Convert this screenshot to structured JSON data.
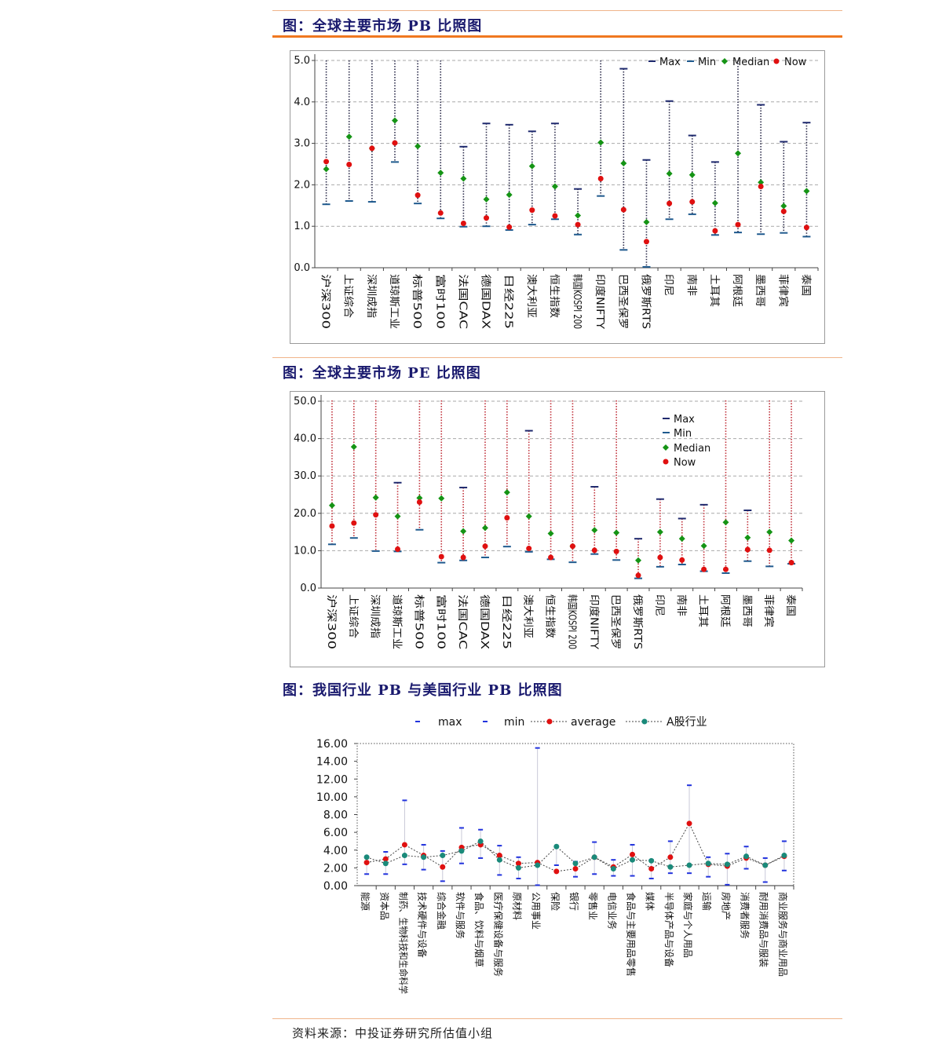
{
  "titles": {
    "pb": "图：全球主要市场 PB 比照图",
    "pe": "图：全球主要市场 PE 比照图",
    "industry": "图：我国行业 PB 与美国行业 PB 比照图"
  },
  "source": "资料来源：中投证券研究所估值小组",
  "colors": {
    "accent": "#f07820",
    "title": "#1a1a6e",
    "max": "#1f2a6e",
    "median": "#159415",
    "now": "#e01010",
    "teal": "#1a8a7a"
  },
  "chart_data": [
    {
      "type": "scatter",
      "id": "global-pb",
      "categories": [
        "沪深300",
        "上证综合",
        "深圳成指",
        "道琼斯工业",
        "标普500",
        "富时100",
        "法国CAC",
        "德国DAX",
        "日经225",
        "澳大利亚",
        "恒生指数",
        "韩国KOSPI 200",
        "印度NIFTY",
        "巴西圣保罗",
        "俄罗斯RTS",
        "印尼",
        "南非",
        "土耳其",
        "阿根廷",
        "墨西哥",
        "菲律宾",
        "泰国"
      ],
      "ylim": [
        0,
        5
      ],
      "yticks": [
        "0.0",
        "1.0",
        "2.0",
        "3.0",
        "4.0",
        "5.0"
      ],
      "legend_placement": "top-right",
      "legend": [
        "Max",
        "Min",
        "Median",
        "Now"
      ],
      "series": [
        {
          "name": "Max",
          "values": [
            5.3,
            5.3,
            5.3,
            5.3,
            5.3,
            5.3,
            2.92,
            3.48,
            3.45,
            3.29,
            3.48,
            1.9,
            5.3,
            4.8,
            2.6,
            4.02,
            3.19,
            2.55,
            5.3,
            3.93,
            3.04,
            3.5
          ]
        },
        {
          "name": "Min",
          "values": [
            1.53,
            1.61,
            1.59,
            2.55,
            1.55,
            1.19,
            0.99,
            1.0,
            0.91,
            1.04,
            1.17,
            0.8,
            1.73,
            0.43,
            0.02,
            1.17,
            1.29,
            0.79,
            0.85,
            0.81,
            0.84,
            0.75
          ]
        },
        {
          "name": "Median",
          "values": [
            2.38,
            3.16,
            2.88,
            3.55,
            2.93,
            2.29,
            2.15,
            1.65,
            1.76,
            2.45,
            1.96,
            1.26,
            3.02,
            2.52,
            1.1,
            2.27,
            2.24,
            1.56,
            2.76,
            2.06,
            1.49,
            1.85
          ]
        },
        {
          "name": "Now",
          "values": [
            2.56,
            2.49,
            2.88,
            3.01,
            1.75,
            1.32,
            1.07,
            1.2,
            0.98,
            1.39,
            1.25,
            1.04,
            2.15,
            1.4,
            0.63,
            1.55,
            1.59,
            0.89,
            1.04,
            1.96,
            1.36,
            0.97
          ]
        }
      ]
    },
    {
      "type": "scatter",
      "id": "global-pe",
      "categories": [
        "沪深300",
        "上证综合",
        "深圳成指",
        "道琼斯工业",
        "标普500",
        "富时100",
        "法国CAC",
        "德国DAX",
        "日经225",
        "澳大利亚",
        "恒生指数",
        "韩国KOSPI 200",
        "印度NIFTY",
        "巴西圣保罗",
        "俄罗斯RTS",
        "印尼",
        "南非",
        "土耳其",
        "阿根廷",
        "墨西哥",
        "菲律宾",
        "泰国"
      ],
      "ylim": [
        0,
        50
      ],
      "yticks": [
        "0.0",
        "10.0",
        "20.0",
        "30.0",
        "40.0",
        "50.0"
      ],
      "legend_placement": "right",
      "legend": [
        "Max",
        "Min",
        "Median",
        "Now"
      ],
      "series": [
        {
          "name": "Max",
          "values": [
            51,
            51,
            51,
            28.2,
            51,
            51,
            26.9,
            51,
            51,
            42.1,
            51,
            51,
            27.1,
            51,
            13.2,
            23.8,
            18.6,
            22.3,
            51,
            20.8,
            51,
            51
          ]
        },
        {
          "name": "Min",
          "values": [
            11.7,
            13.4,
            9.9,
            9.8,
            15.6,
            6.8,
            7.4,
            8.2,
            11.1,
            9.7,
            7.7,
            6.9,
            9.1,
            7.5,
            2.6,
            5.7,
            6.3,
            4.5,
            4.0,
            7.2,
            5.8,
            6.5
          ]
        },
        {
          "name": "Median",
          "values": [
            22.1,
            37.8,
            24.2,
            19.2,
            24.1,
            24.0,
            15.2,
            16.1,
            25.6,
            19.2,
            14.6,
            11.2,
            15.5,
            14.8,
            7.4,
            15.0,
            13.2,
            11.3,
            17.6,
            13.5,
            15.0,
            12.7
          ]
        },
        {
          "name": "Now",
          "values": [
            16.6,
            17.4,
            19.6,
            10.4,
            23.0,
            8.4,
            8.2,
            11.2,
            18.8,
            10.6,
            8.2,
            11.2,
            10.1,
            9.8,
            3.4,
            8.2,
            7.5,
            5.0,
            5.0,
            10.3,
            10.1,
            6.8
          ]
        }
      ]
    },
    {
      "type": "line",
      "id": "industry-pb",
      "categories": [
        "能源",
        "资本品",
        "制药、生物科技和生命科学",
        "技术硬件与设备",
        "综合金融",
        "软件与服务",
        "食品、饮料与烟草",
        "医疗保健设备与服务",
        "原材料",
        "公用事业",
        "保险",
        "银行",
        "零售业",
        "电信业务",
        "食品与主要用品零售",
        "媒体",
        "半导体产品与设备",
        "家庭与个人用品",
        "运输",
        "房地产",
        "消费者服务",
        "耐用消费品与服装",
        "商业服务与商业用品"
      ],
      "ylim": [
        0,
        16
      ],
      "yticks": [
        "0.00",
        "2.00",
        "4.00",
        "6.00",
        "8.00",
        "10.00",
        "12.00",
        "14.00",
        "16.00"
      ],
      "legend_placement": "top",
      "legend": [
        "max",
        "min",
        "average",
        "A股行业"
      ],
      "series": [
        {
          "name": "max",
          "values": [
            3.3,
            3.8,
            9.6,
            4.6,
            3.9,
            6.5,
            6.3,
            4.5,
            3.2,
            15.5,
            4.4,
            2.7,
            4.9,
            2.9,
            4.6,
            2.9,
            5.0,
            11.3,
            3.2,
            3.6,
            4.4,
            3.1,
            5.0
          ]
        },
        {
          "name": "min",
          "values": [
            1.3,
            1.3,
            2.4,
            1.8,
            0.5,
            2.5,
            3.1,
            1.2,
            0.8,
            0.05,
            2.3,
            1.0,
            1.3,
            1.1,
            1.1,
            0.8,
            1.4,
            1.4,
            1.0,
            0.1,
            1.9,
            0.4,
            1.7
          ]
        },
        {
          "name": "average",
          "values": [
            2.6,
            3.0,
            4.6,
            3.4,
            2.1,
            4.3,
            4.6,
            3.4,
            2.5,
            2.6,
            1.6,
            1.9,
            3.2,
            2.1,
            3.5,
            1.9,
            3.2,
            7.0,
            2.4,
            2.2,
            3.1,
            2.3,
            3.3
          ]
        },
        {
          "name": "A股行业",
          "values": [
            3.2,
            2.5,
            3.4,
            3.2,
            3.4,
            3.9,
            5.0,
            2.9,
            2.0,
            2.3,
            4.4,
            2.5,
            3.2,
            1.9,
            2.9,
            2.8,
            2.1,
            2.3,
            2.5,
            2.4,
            3.3,
            2.3,
            3.4
          ]
        }
      ]
    }
  ]
}
